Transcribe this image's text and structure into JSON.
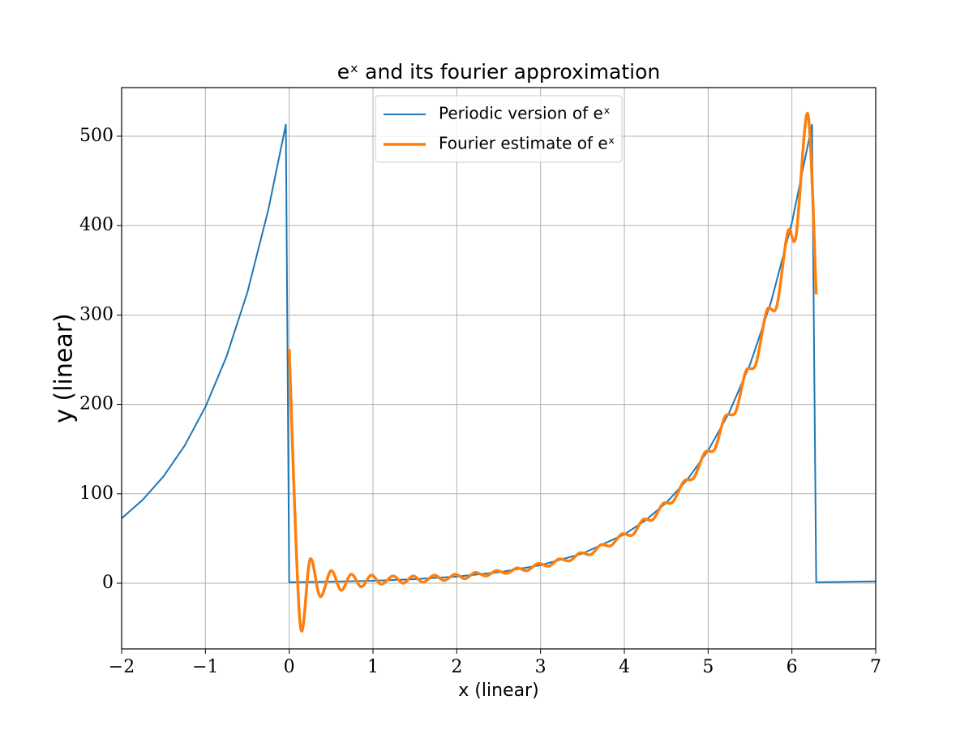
{
  "chart_data": {
    "type": "line",
    "title": "eˣ and its fourier approximation",
    "xlabel": "x (linear)",
    "ylabel": "y (linear)",
    "xlim": [
      -2,
      7
    ],
    "ylim": [
      -73.5,
      554.4
    ],
    "xticks": [
      {
        "value": -2,
        "label": "−2"
      },
      {
        "value": -1,
        "label": "−1"
      },
      0,
      1,
      2,
      3,
      4,
      5,
      6,
      7
    ],
    "yticks": [
      0,
      100,
      200,
      300,
      400,
      500
    ],
    "grid": true,
    "legend": "upper center",
    "series": [
      {
        "name": "Periodic version of eˣ",
        "color": "#1f77b4",
        "width": 2,
        "smooth": false,
        "x": [
          -2,
          -1.75,
          -1.5,
          -1.25,
          -1,
          -0.75,
          -0.5,
          -0.25,
          -0.04,
          0,
          0.5,
          1,
          1.5,
          2,
          2.5,
          3,
          3.5,
          4,
          4.25,
          4.5,
          4.75,
          5,
          5.25,
          5.5,
          5.75,
          6,
          6.24,
          6.29,
          7
        ],
        "values": [
          72.5,
          93.1,
          119.5,
          153.5,
          197.1,
          253.1,
          325.0,
          417.4,
          513,
          1,
          1.65,
          2.72,
          4.48,
          7.39,
          12.2,
          20.1,
          33.1,
          54.6,
          70.1,
          90.0,
          115.6,
          148.4,
          190.6,
          244.7,
          314.2,
          403.4,
          512.9,
          1.0,
          2.05
        ]
      },
      {
        "name": "Fourier estimate of eˣ",
        "color": "#ff7f0e",
        "width": 3.5,
        "smooth": true,
        "x": [
          0,
          0.13,
          0.25,
          0.37,
          0.5,
          0.62,
          0.74,
          0.86,
          0.98,
          1.1,
          1.24,
          1.36,
          1.48,
          1.6,
          1.73,
          1.85,
          1.98,
          2.1,
          2.22,
          2.35,
          2.47,
          2.6,
          2.72,
          2.84,
          2.97,
          3.1,
          3.22,
          3.35,
          3.47,
          3.6,
          3.72,
          3.84,
          3.97,
          4.1,
          4.22,
          4.34,
          4.46,
          4.58,
          4.71,
          4.83,
          4.96,
          5.08,
          5.2,
          5.33,
          5.45,
          5.57,
          5.7,
          5.82,
          5.95,
          6.05,
          6.19,
          6.29
        ],
        "values": [
          262,
          -45,
          27,
          -15,
          14,
          -8,
          10,
          -4,
          9,
          -1,
          8,
          0,
          8,
          1,
          9,
          3,
          10,
          5,
          12,
          8,
          14,
          11,
          17,
          14,
          22,
          19,
          27,
          25,
          34,
          32,
          43,
          42,
          55,
          54,
          71,
          71,
          89,
          91,
          114,
          118,
          146,
          150,
          186,
          192,
          237,
          245,
          305,
          310,
          393,
          389,
          525,
          323
        ]
      }
    ]
  }
}
